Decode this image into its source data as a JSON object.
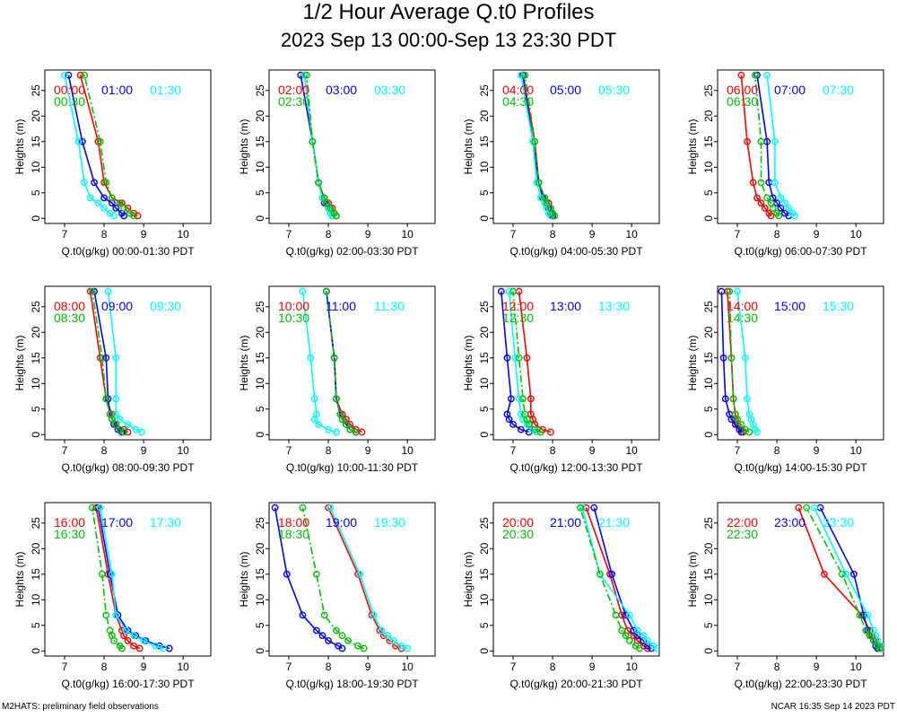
{
  "title": "1/2 Hour Average Q.t0 Profiles",
  "subtitle": "2023 Sep 13 00:00-Sep 13 23:30 PDT",
  "footer_left": "M2HATS: preliminary field observations",
  "footer_right": "NCAR 16:35 Sep 14 2023 PDT",
  "colors": {
    "series1": "#ff0000",
    "series2": "#0000ff",
    "series3": "#00ffff",
    "series4": "#00c000"
  },
  "chart_data": [
    {
      "type": "line",
      "xlabel": "Q.t0(g/kg) 00:00-01:30 PDT",
      "ylabel": "Heights (m)",
      "xlim": [
        6.5,
        10.7
      ],
      "ylim": [
        -1,
        29
      ],
      "xticks": [
        7,
        8,
        9,
        10
      ],
      "yticks": [
        0,
        5,
        10,
        15,
        20,
        25
      ],
      "heights": [
        0.5,
        1,
        2,
        3,
        4,
        7,
        15,
        28
      ],
      "series": [
        {
          "name": "00:00",
          "color": "series1",
          "values": [
            8.85,
            8.75,
            8.6,
            8.45,
            8.2,
            8.0,
            7.85,
            7.4
          ]
        },
        {
          "name": "01:00",
          "color": "series2",
          "values": [
            8.5,
            8.45,
            8.3,
            8.2,
            8.0,
            7.75,
            7.45,
            7.1
          ]
        },
        {
          "name": "01:30",
          "color": "series3",
          "values": [
            8.25,
            8.15,
            8.0,
            7.85,
            7.65,
            7.5,
            7.35,
            7.0
          ]
        },
        {
          "name": "00:30",
          "color": "series4",
          "values": [
            8.75,
            8.65,
            8.5,
            8.4,
            8.2,
            8.05,
            7.9,
            7.5
          ]
        }
      ]
    },
    {
      "type": "line",
      "xlabel": "Q.t0(g/kg) 02:00-03:30 PDT",
      "ylabel": "Heights (m)",
      "xlim": [
        6.5,
        10.7
      ],
      "ylim": [
        -1,
        29
      ],
      "xticks": [
        7,
        8,
        9,
        10
      ],
      "yticks": [
        0,
        5,
        10,
        15,
        20,
        25
      ],
      "heights": [
        0.5,
        1,
        2,
        3,
        4,
        7,
        15,
        28
      ],
      "series": [
        {
          "name": "02:00",
          "color": "series1",
          "values": [
            8.2,
            8.15,
            8.1,
            8.0,
            7.9,
            7.75,
            7.6,
            7.4
          ]
        },
        {
          "name": "03:00",
          "color": "series2",
          "values": [
            8.1,
            8.05,
            8.0,
            7.9,
            7.85,
            7.75,
            7.6,
            7.3
          ]
        },
        {
          "name": "03:30",
          "color": "series3",
          "values": [
            8.1,
            8.05,
            8.0,
            7.95,
            7.85,
            7.75,
            7.6,
            7.4
          ]
        },
        {
          "name": "02:30",
          "color": "series4",
          "values": [
            8.2,
            8.15,
            8.05,
            7.95,
            7.9,
            7.75,
            7.6,
            7.45
          ]
        }
      ]
    },
    {
      "type": "line",
      "xlabel": "Q.t0(g/kg) 04:00-05:30 PDT",
      "ylabel": "Heights (m)",
      "xlim": [
        6.5,
        10.7
      ],
      "ylim": [
        -1,
        29
      ],
      "xticks": [
        7,
        8,
        9,
        10
      ],
      "yticks": [
        0,
        5,
        10,
        15,
        20,
        25
      ],
      "heights": [
        0.5,
        1,
        2,
        3,
        4,
        7,
        15,
        28
      ],
      "series": [
        {
          "name": "04:00",
          "color": "series1",
          "values": [
            8.05,
            8.0,
            7.95,
            7.9,
            7.8,
            7.65,
            7.55,
            7.25
          ]
        },
        {
          "name": "05:00",
          "color": "series2",
          "values": [
            8.0,
            7.95,
            7.9,
            7.85,
            7.75,
            7.65,
            7.5,
            7.25
          ]
        },
        {
          "name": "05:30",
          "color": "series3",
          "values": [
            7.95,
            7.9,
            7.85,
            7.8,
            7.7,
            7.6,
            7.5,
            7.2
          ]
        },
        {
          "name": "04:30",
          "color": "series4",
          "values": [
            8.05,
            8.0,
            7.95,
            7.85,
            7.8,
            7.65,
            7.55,
            7.3
          ]
        }
      ]
    },
    {
      "type": "line",
      "xlabel": "Q.t0(g/kg) 06:00-07:30 PDT",
      "ylabel": "Heights (m)",
      "xlim": [
        6.5,
        10.7
      ],
      "ylim": [
        -1,
        29
      ],
      "xticks": [
        7,
        8,
        9,
        10
      ],
      "yticks": [
        0,
        5,
        10,
        15,
        20,
        25
      ],
      "heights": [
        0.5,
        1,
        2,
        3,
        4,
        7,
        15,
        28
      ],
      "series": [
        {
          "name": "06:00",
          "color": "series1",
          "values": [
            7.85,
            7.8,
            7.7,
            7.6,
            7.5,
            7.4,
            7.25,
            7.1
          ]
        },
        {
          "name": "07:00",
          "color": "series2",
          "values": [
            8.3,
            8.2,
            8.1,
            8.0,
            7.9,
            7.8,
            7.75,
            7.5
          ]
        },
        {
          "name": "07:30",
          "color": "series3",
          "values": [
            8.45,
            8.4,
            8.3,
            8.2,
            8.1,
            7.95,
            7.95,
            7.75
          ]
        },
        {
          "name": "06:30",
          "color": "series4",
          "values": [
            8.05,
            8.0,
            7.9,
            7.85,
            7.75,
            7.6,
            7.6,
            7.45
          ]
        }
      ]
    },
    {
      "type": "line",
      "xlabel": "Q.t0(g/kg) 08:00-09:30 PDT",
      "ylabel": "Heights (m)",
      "xlim": [
        6.5,
        10.7
      ],
      "ylim": [
        -1,
        29
      ],
      "xticks": [
        7,
        8,
        9,
        10
      ],
      "yticks": [
        0,
        5,
        10,
        15,
        20,
        25
      ],
      "heights": [
        0.5,
        1,
        2,
        3,
        4,
        7,
        15,
        28
      ],
      "series": [
        {
          "name": "08:00",
          "color": "series1",
          "values": [
            8.6,
            8.5,
            8.3,
            8.2,
            8.2,
            8.05,
            7.9,
            7.65
          ]
        },
        {
          "name": "09:00",
          "color": "series2",
          "values": [
            8.45,
            8.35,
            8.25,
            8.2,
            8.15,
            8.1,
            8.05,
            7.75
          ]
        },
        {
          "name": "09:30",
          "color": "series3",
          "values": [
            8.95,
            8.8,
            8.6,
            8.4,
            8.3,
            8.3,
            8.3,
            8.1
          ]
        },
        {
          "name": "08:30",
          "color": "series4",
          "values": [
            8.5,
            8.4,
            8.3,
            8.2,
            8.15,
            8.05,
            7.95,
            7.7
          ]
        }
      ]
    },
    {
      "type": "line",
      "xlabel": "Q.t0(g/kg) 10:00-11:30 PDT",
      "ylabel": "Heights (m)",
      "xlim": [
        6.5,
        10.7
      ],
      "ylim": [
        -1,
        29
      ],
      "xticks": [
        7,
        8,
        9,
        10
      ],
      "yticks": [
        0,
        5,
        10,
        15,
        20,
        25
      ],
      "heights": [
        0.5,
        1,
        2,
        3,
        4,
        7,
        15,
        28
      ],
      "series": [
        {
          "name": "10:00",
          "color": "series1",
          "values": [
            8.85,
            8.7,
            8.55,
            8.45,
            8.35,
            8.2,
            8.15,
            7.95
          ]
        },
        {
          "name": "11:00",
          "color": "series2",
          "values": [
            8.7,
            8.55,
            8.45,
            8.35,
            8.3,
            8.2,
            8.15,
            7.95
          ]
        },
        {
          "name": "11:30",
          "color": "series3",
          "values": [
            8.2,
            8.0,
            7.75,
            7.65,
            7.7,
            7.65,
            7.55,
            7.35
          ]
        },
        {
          "name": "10:30",
          "color": "series4",
          "values": [
            8.7,
            8.55,
            8.45,
            8.35,
            8.3,
            8.2,
            8.15,
            7.95
          ]
        }
      ]
    },
    {
      "type": "line",
      "xlabel": "Q.t0(g/kg) 12:00-13:30 PDT",
      "ylabel": "Heights (m)",
      "xlim": [
        6.5,
        10.7
      ],
      "ylim": [
        -1,
        29
      ],
      "xticks": [
        7,
        8,
        9,
        10
      ],
      "yticks": [
        0,
        5,
        10,
        15,
        20,
        25
      ],
      "heights": [
        0.5,
        1,
        2,
        3,
        4,
        7,
        15,
        28
      ],
      "series": [
        {
          "name": "12:00",
          "color": "series1",
          "values": [
            7.95,
            7.75,
            7.55,
            7.5,
            7.45,
            7.45,
            7.35,
            7.15
          ]
        },
        {
          "name": "13:00",
          "color": "series2",
          "values": [
            7.4,
            7.2,
            7.0,
            6.9,
            6.85,
            6.95,
            6.85,
            6.7
          ]
        },
        {
          "name": "13:30",
          "color": "series3",
          "values": [
            7.6,
            7.5,
            7.35,
            7.25,
            7.2,
            7.15,
            7.05,
            6.9
          ]
        },
        {
          "name": "12:30",
          "color": "series4",
          "values": [
            7.7,
            7.55,
            7.4,
            7.35,
            7.3,
            7.25,
            7.15,
            7.0
          ]
        }
      ]
    },
    {
      "type": "line",
      "xlabel": "Q.t0(g/kg) 14:00-15:30 PDT",
      "ylabel": "Heights (m)",
      "xlim": [
        6.5,
        10.7
      ],
      "ylim": [
        -1,
        29
      ],
      "xticks": [
        7,
        8,
        9,
        10
      ],
      "yticks": [
        0,
        5,
        10,
        15,
        20,
        25
      ],
      "heights": [
        0.5,
        1,
        2,
        3,
        4,
        7,
        15,
        28
      ],
      "series": [
        {
          "name": "14:00",
          "color": "series1",
          "values": [
            7.15,
            7.1,
            7.0,
            6.95,
            6.95,
            6.9,
            6.85,
            6.75
          ]
        },
        {
          "name": "15:00",
          "color": "series2",
          "values": [
            7.1,
            7.05,
            6.95,
            6.85,
            6.8,
            6.7,
            6.65,
            6.6
          ]
        },
        {
          "name": "15:30",
          "color": "series3",
          "values": [
            7.5,
            7.45,
            7.4,
            7.35,
            7.3,
            7.25,
            7.2,
            7.0
          ]
        },
        {
          "name": "14:30",
          "color": "series4",
          "values": [
            7.3,
            7.2,
            7.1,
            7.0,
            6.95,
            6.9,
            6.85,
            6.8
          ]
        }
      ]
    },
    {
      "type": "line",
      "xlabel": "Q.t0(g/kg) 16:00-17:30 PDT",
      "ylabel": "Heights (m)",
      "xlim": [
        6.5,
        10.7
      ],
      "ylim": [
        -1,
        29
      ],
      "xticks": [
        7,
        8,
        9,
        10
      ],
      "yticks": [
        0,
        5,
        10,
        15,
        20,
        25
      ],
      "heights": [
        0.5,
        1,
        2,
        3,
        4,
        7,
        15,
        28
      ],
      "series": [
        {
          "name": "16:00",
          "color": "series1",
          "values": [
            8.9,
            8.75,
            8.6,
            8.5,
            8.45,
            8.3,
            8.1,
            7.8
          ]
        },
        {
          "name": "17:00",
          "color": "series2",
          "values": [
            9.65,
            9.4,
            9.05,
            8.8,
            8.6,
            8.35,
            8.15,
            7.85
          ]
        },
        {
          "name": "17:30",
          "color": "series3",
          "values": [
            9.5,
            9.3,
            9.0,
            8.75,
            8.55,
            8.3,
            8.2,
            7.9
          ]
        },
        {
          "name": "16:30",
          "color": "series4",
          "values": [
            8.45,
            8.4,
            8.25,
            8.2,
            8.15,
            8.05,
            7.95,
            7.7
          ]
        }
      ]
    },
    {
      "type": "line",
      "xlabel": "Q.t0(g/kg) 18:00-19:30 PDT",
      "ylabel": "Heights (m)",
      "xlim": [
        6.5,
        10.7
      ],
      "ylim": [
        -1,
        29
      ],
      "xticks": [
        7,
        8,
        9,
        10
      ],
      "yticks": [
        0,
        5,
        10,
        15,
        20,
        25
      ],
      "heights": [
        0.5,
        1,
        2,
        3,
        4,
        7,
        15,
        28
      ],
      "series": [
        {
          "name": "18:00",
          "color": "series1",
          "values": [
            9.85,
            9.7,
            9.55,
            9.4,
            9.3,
            9.1,
            8.75,
            8.0
          ]
        },
        {
          "name": "19:00",
          "color": "series2",
          "values": [
            8.35,
            8.25,
            8.0,
            7.85,
            7.7,
            7.35,
            6.95,
            6.65
          ]
        },
        {
          "name": "19:30",
          "color": "series3",
          "values": [
            10.0,
            9.85,
            9.65,
            9.5,
            9.35,
            9.15,
            8.8,
            8.05
          ]
        },
        {
          "name": "18:30",
          "color": "series4",
          "values": [
            8.9,
            8.75,
            8.5,
            8.35,
            8.2,
            7.9,
            7.7,
            7.35
          ]
        }
      ]
    },
    {
      "type": "line",
      "xlabel": "Q.t0(g/kg) 20:00-21:30 PDT",
      "ylabel": "Heights (m)",
      "xlim": [
        6.5,
        10.7
      ],
      "ylim": [
        -1,
        29
      ],
      "xticks": [
        7,
        8,
        9,
        10
      ],
      "yticks": [
        0,
        5,
        10,
        15,
        20,
        25
      ],
      "heights": [
        0.5,
        1,
        2,
        3,
        4,
        7,
        15,
        28
      ],
      "series": [
        {
          "name": "20:00",
          "color": "series1",
          "values": [
            10.4,
            10.3,
            10.15,
            10.05,
            9.9,
            9.75,
            9.45,
            8.85
          ]
        },
        {
          "name": "21:00",
          "color": "series2",
          "values": [
            10.5,
            10.4,
            10.3,
            10.15,
            10.05,
            9.85,
            9.5,
            9.05
          ]
        },
        {
          "name": "21:30",
          "color": "series3",
          "values": [
            10.65,
            10.55,
            10.4,
            10.3,
            10.15,
            9.95,
            9.2,
            8.75
          ]
        },
        {
          "name": "20:30",
          "color": "series4",
          "values": [
            10.2,
            10.1,
            9.95,
            9.85,
            9.75,
            9.6,
            9.2,
            8.7
          ]
        }
      ]
    },
    {
      "type": "line",
      "xlabel": "Q.t0(g/kg) 22:00-23:30 PDT",
      "ylabel": "Heights (m)",
      "xlim": [
        6.5,
        10.7
      ],
      "ylim": [
        -1,
        29
      ],
      "xticks": [
        7,
        8,
        9,
        10
      ],
      "yticks": [
        0,
        5,
        10,
        15,
        20,
        25
      ],
      "heights": [
        0.5,
        1,
        2,
        3,
        4,
        7,
        15,
        28
      ],
      "series": [
        {
          "name": "22:00",
          "color": "series1",
          "values": [
            10.65,
            10.6,
            10.5,
            10.4,
            10.35,
            10.15,
            9.2,
            8.55
          ]
        },
        {
          "name": "23:00",
          "color": "series2",
          "values": [
            10.55,
            10.5,
            10.45,
            10.35,
            10.3,
            10.2,
            9.95,
            9.1
          ]
        },
        {
          "name": "23:30",
          "color": "series3",
          "values": [
            10.7,
            10.65,
            10.55,
            10.5,
            10.45,
            10.3,
            9.75,
            8.95
          ]
        },
        {
          "name": "22:30",
          "color": "series4",
          "values": [
            10.6,
            10.55,
            10.45,
            10.35,
            10.25,
            10.1,
            9.65,
            8.75
          ]
        }
      ]
    }
  ]
}
